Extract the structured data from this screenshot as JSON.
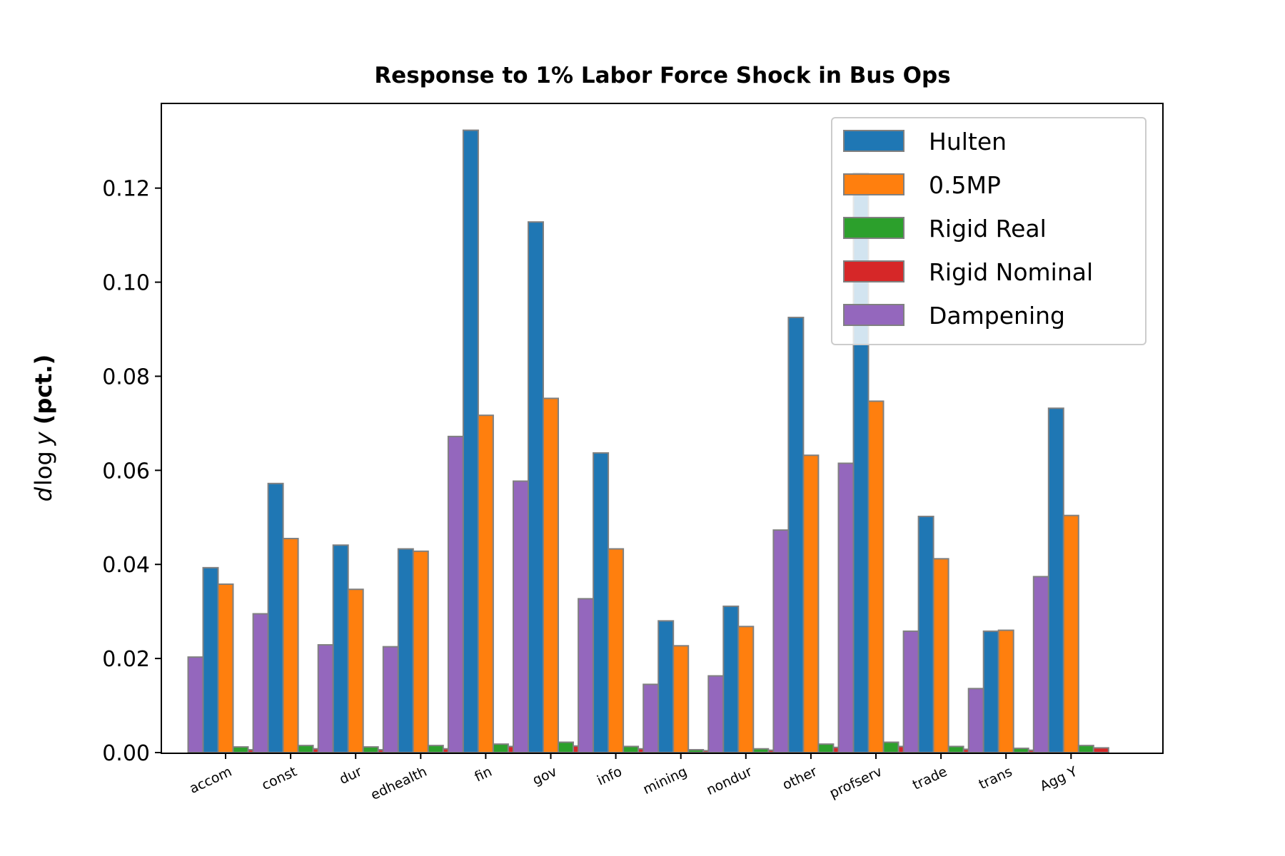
{
  "chart_data": {
    "type": "bar",
    "title": "Response to 1% Labor Force Shock in Bus Ops",
    "ylabel": {
      "italic_part": "d",
      "log_part": "log",
      "var_part": "y",
      "bold_part": "(pct.)"
    },
    "xlabel": "",
    "ylim": [
      0,
      0.138
    ],
    "yticks": [
      0.0,
      0.02,
      0.04,
      0.06,
      0.08,
      0.1,
      0.12
    ],
    "ytick_labels": [
      "0.00",
      "0.02",
      "0.04",
      "0.06",
      "0.08",
      "0.10",
      "0.12"
    ],
    "categories": [
      "accom",
      "const",
      "dur",
      "edhealth",
      "fin",
      "gov",
      "info",
      "mining",
      "nondur",
      "other",
      "profserv",
      "trade",
      "trans",
      "Agg Y"
    ],
    "series": [
      {
        "name": "Hulten",
        "color": "#1f77b4",
        "values": [
          0.0393,
          0.0572,
          0.0441,
          0.0433,
          0.1323,
          0.1128,
          0.0637,
          0.028,
          0.0311,
          0.0925,
          0.1232,
          0.0502,
          0.0258,
          0.0732
        ]
      },
      {
        "name": "0.5MP",
        "color": "#ff7f0e",
        "values": [
          0.0358,
          0.0455,
          0.0347,
          0.0428,
          0.0717,
          0.0753,
          0.0433,
          0.0227,
          0.0268,
          0.0632,
          0.0747,
          0.0412,
          0.026,
          0.0504
        ]
      },
      {
        "name": "Rigid Real",
        "color": "#2ca02c",
        "values": [
          0.0012,
          0.0015,
          0.0012,
          0.0015,
          0.0018,
          0.0022,
          0.0013,
          0.0006,
          0.0008,
          0.0018,
          0.0022,
          0.0013,
          0.0009,
          0.0015
        ]
      },
      {
        "name": "Rigid Nominal",
        "color": "#d62728",
        "values": [
          0.0006,
          0.0008,
          0.0006,
          0.0008,
          0.0013,
          0.0014,
          0.0008,
          0.0004,
          0.0005,
          0.0011,
          0.0013,
          0.0007,
          0.0005,
          0.001
        ]
      },
      {
        "name": "Dampening",
        "color": "#9467bd",
        "values": [
          0.0203,
          0.0295,
          0.0229,
          0.0225,
          0.0672,
          0.0577,
          0.0327,
          0.0145,
          0.0163,
          0.0473,
          0.0615,
          0.0258,
          0.0136,
          0.0374
        ]
      }
    ],
    "legend_placement": "upper-right",
    "grid": false,
    "bar_edge_color": "#808080"
  }
}
